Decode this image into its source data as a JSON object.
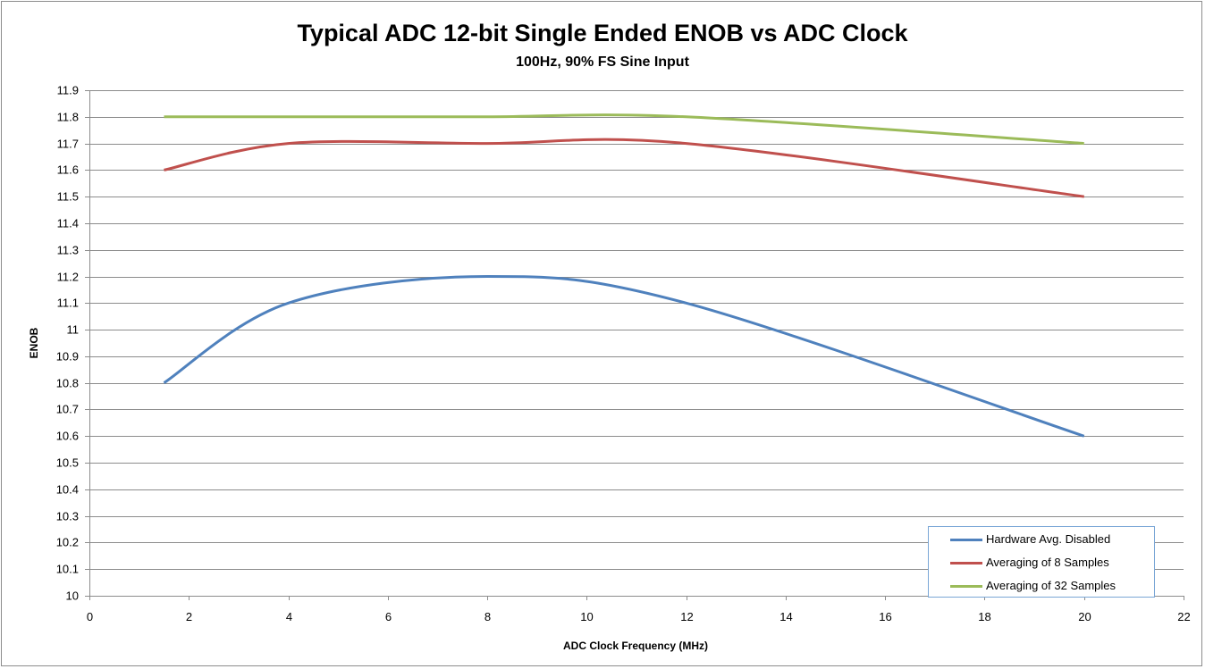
{
  "chart_data": {
    "type": "line",
    "title": "Typical ADC 12-bit Single Ended ENOB vs ADC Clock",
    "subtitle": "100Hz, 90% FS Sine Input",
    "xlabel": "ADC Clock Frequency (MHz)",
    "ylabel": "ENOB",
    "xlim": [
      0,
      22
    ],
    "ylim": [
      10,
      11.9
    ],
    "x_ticks": [
      "0",
      "2",
      "4",
      "6",
      "8",
      "10",
      "12",
      "14",
      "16",
      "18",
      "20",
      "22"
    ],
    "y_ticks": [
      "10",
      "10.1",
      "10.2",
      "10.3",
      "10.4",
      "10.5",
      "10.6",
      "10.7",
      "10.8",
      "10.9",
      "11",
      "11.1",
      "11.2",
      "11.3",
      "11.4",
      "11.5",
      "11.6",
      "11.7",
      "11.8",
      "11.9"
    ],
    "grid": "horizontal",
    "legend_position": "bottom-right",
    "series": [
      {
        "name": "Hardware Avg. Disabled",
        "color": "#4f81bd",
        "x": [
          1.5,
          4,
          8,
          12,
          20
        ],
        "y": [
          10.8,
          11.1,
          11.2,
          11.1,
          10.6
        ]
      },
      {
        "name": "Averaging of 8 Samples",
        "color": "#c0504d",
        "x": [
          1.5,
          4,
          8,
          12,
          20
        ],
        "y": [
          11.6,
          11.7,
          11.7,
          11.7,
          11.5
        ]
      },
      {
        "name": "Averaging of 32 Samples",
        "color": "#9bbb59",
        "x": [
          1.5,
          4,
          8,
          12,
          20
        ],
        "y": [
          11.8,
          11.8,
          11.8,
          11.8,
          11.7
        ]
      }
    ]
  }
}
